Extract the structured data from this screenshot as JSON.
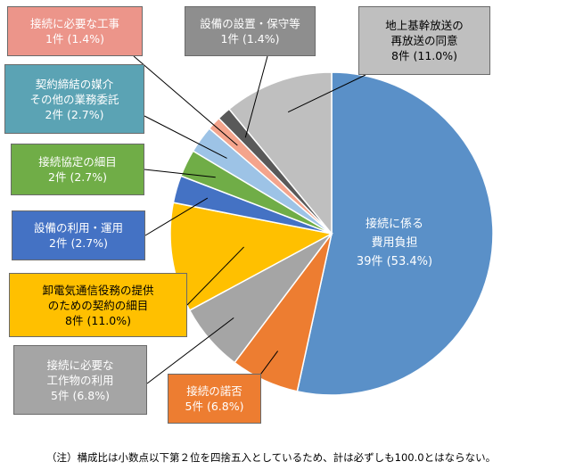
{
  "chart_data": {
    "type": "pie",
    "title": "",
    "slices": [
      {
        "label_lines": [
          "接続に係る",
          "費用負担"
        ],
        "count": "39件",
        "pct": "(53.4%)",
        "value": 39,
        "percent": 53.4,
        "color": "#5a90c8"
      },
      {
        "label_lines": [
          "接続の諾否"
        ],
        "count": "5件",
        "pct": "(6.8%)",
        "value": 5,
        "percent": 6.8,
        "color": "#ed7d31"
      },
      {
        "label_lines": [
          "接続に必要な",
          "工作物の利用"
        ],
        "count": "5件",
        "pct": "(6.8%)",
        "value": 5,
        "percent": 6.8,
        "color": "#a5a5a5"
      },
      {
        "label_lines": [
          "卸電気通信役務の提供",
          "のための契約の細目"
        ],
        "count": "8件",
        "pct": "(11.0%)",
        "value": 8,
        "percent": 11.0,
        "color": "#ffc000"
      },
      {
        "label_lines": [
          "設備の利用・運用"
        ],
        "count": "2件",
        "pct": "(2.7%)",
        "value": 2,
        "percent": 2.7,
        "color": "#4472c4"
      },
      {
        "label_lines": [
          "接続協定の細目"
        ],
        "count": "2件",
        "pct": "(2.7%)",
        "value": 2,
        "percent": 2.7,
        "color": "#70ad47"
      },
      {
        "label_lines": [
          "契約締結の媒介",
          "その他の業務委託"
        ],
        "count": "2件",
        "pct": "(2.7%)",
        "value": 2,
        "percent": 2.7,
        "color": "#9dc3e6"
      },
      {
        "label_lines": [
          "接続に必要な工事"
        ],
        "count": "1件",
        "pct": "(1.4%)",
        "value": 1,
        "percent": 1.4,
        "color": "#f4a48c"
      },
      {
        "label_lines": [
          "設備の設置・保守等"
        ],
        "count": "1件",
        "pct": "(1.4%)",
        "value": 1,
        "percent": 1.4,
        "color": "#595959"
      },
      {
        "label_lines": [
          "地上基幹放送の",
          "再放送の同意"
        ],
        "count": "8件",
        "pct": "(11.0%)",
        "value": 8,
        "percent": 11.0,
        "color": "#bfbfbf"
      }
    ]
  },
  "footnote": "（注）構成比は小数点以下第２位を四捨五入としているため、計は必ずしも100.0とはならない。"
}
